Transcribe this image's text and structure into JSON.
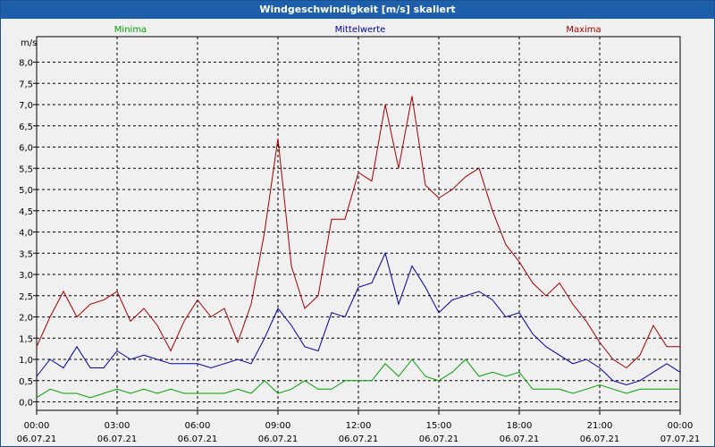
{
  "chart_data": {
    "type": "line",
    "title": "Windgeschwindigkeit [m/s] skaliert",
    "ylabel": "m/s",
    "ylim": [
      -0.2,
      8.6
    ],
    "yticks": [
      "0,0",
      "0,5",
      "1,0",
      "1,5",
      "2,0",
      "2,5",
      "3,0",
      "3,5",
      "4,0",
      "4,5",
      "5,0",
      "5,5",
      "6,0",
      "6,5",
      "7,0",
      "7,5",
      "8,0"
    ],
    "x_range_hours": [
      0,
      24
    ],
    "xticks": [
      {
        "time": "00:00",
        "date": "06.07.21"
      },
      {
        "time": "03:00",
        "date": "06.07.21"
      },
      {
        "time": "06:00",
        "date": "06.07.21"
      },
      {
        "time": "09:00",
        "date": "06.07.21"
      },
      {
        "time": "12:00",
        "date": "06.07.21"
      },
      {
        "time": "15:00",
        "date": "06.07.21"
      },
      {
        "time": "18:00",
        "date": "06.07.21"
      },
      {
        "time": "21:00",
        "date": "06.07.21"
      },
      {
        "time": "00:00",
        "date": "07.07.21"
      }
    ],
    "grid": true,
    "series": [
      {
        "name": "Minima",
        "color": "#00a000",
        "x": [
          0,
          0.5,
          1,
          1.5,
          2,
          2.5,
          3,
          3.5,
          4,
          4.5,
          5,
          5.5,
          6,
          6.5,
          7,
          7.5,
          8,
          8.5,
          9,
          9.5,
          10,
          10.5,
          11,
          11.5,
          12,
          12.5,
          13,
          13.5,
          14,
          14.5,
          15,
          15.5,
          16,
          16.5,
          17,
          17.5,
          18,
          18.5,
          19,
          19.5,
          20,
          20.5,
          21,
          21.5,
          22,
          22.5,
          23,
          23.5,
          24
        ],
        "values": [
          0.1,
          0.3,
          0.2,
          0.2,
          0.1,
          0.2,
          0.3,
          0.2,
          0.3,
          0.2,
          0.3,
          0.2,
          0.2,
          0.2,
          0.2,
          0.3,
          0.2,
          0.5,
          0.2,
          0.3,
          0.5,
          0.3,
          0.3,
          0.5,
          0.5,
          0.5,
          0.9,
          0.6,
          1.0,
          0.6,
          0.5,
          0.7,
          1.0,
          0.6,
          0.7,
          0.6,
          0.7,
          0.3,
          0.3,
          0.3,
          0.2,
          0.3,
          0.4,
          0.3,
          0.2,
          0.3,
          0.3,
          0.3,
          0.3
        ]
      },
      {
        "name": "Mittelwerte",
        "color": "#0000a0",
        "x": [
          0,
          0.5,
          1,
          1.5,
          2,
          2.5,
          3,
          3.5,
          4,
          4.5,
          5,
          5.5,
          6,
          6.5,
          7,
          7.5,
          8,
          8.5,
          9,
          9.5,
          10,
          10.5,
          11,
          11.5,
          12,
          12.5,
          13,
          13.5,
          14,
          14.5,
          15,
          15.5,
          16,
          16.5,
          17,
          17.5,
          18,
          18.5,
          19,
          19.5,
          20,
          20.5,
          21,
          21.5,
          22,
          22.5,
          23,
          23.5,
          24
        ],
        "values": [
          0.6,
          1.0,
          0.8,
          1.3,
          0.8,
          0.8,
          1.2,
          1.0,
          1.1,
          1.0,
          0.9,
          0.9,
          0.9,
          0.8,
          0.9,
          1.0,
          0.9,
          1.5,
          2.2,
          1.8,
          1.3,
          1.2,
          2.1,
          2.0,
          2.7,
          2.8,
          3.5,
          2.3,
          3.2,
          2.7,
          2.1,
          2.4,
          2.5,
          2.6,
          2.4,
          2.0,
          2.1,
          1.6,
          1.3,
          1.1,
          0.9,
          1.0,
          0.8,
          0.5,
          0.4,
          0.5,
          0.7,
          0.9,
          0.7
        ]
      },
      {
        "name": "Maxima",
        "color": "#a00000",
        "x": [
          0,
          0.5,
          1,
          1.5,
          2,
          2.5,
          3,
          3.5,
          4,
          4.5,
          5,
          5.5,
          6,
          6.5,
          7,
          7.5,
          8,
          8.5,
          9,
          9.5,
          10,
          10.5,
          11,
          11.5,
          12,
          12.5,
          13,
          13.5,
          14,
          14.5,
          15,
          15.5,
          16,
          16.5,
          17,
          17.5,
          18,
          18.5,
          19,
          19.5,
          20,
          20.5,
          21,
          21.5,
          22,
          22.5,
          23,
          23.5,
          24
        ],
        "values": [
          1.3,
          2.0,
          2.6,
          2.0,
          2.3,
          2.4,
          2.6,
          1.9,
          2.2,
          1.8,
          1.2,
          1.9,
          2.4,
          2.0,
          2.2,
          1.4,
          2.3,
          4.0,
          6.2,
          3.2,
          2.2,
          2.5,
          4.3,
          4.3,
          5.4,
          5.2,
          7.0,
          5.5,
          7.2,
          5.1,
          4.8,
          5.0,
          5.3,
          5.5,
          4.5,
          3.7,
          3.3,
          2.8,
          2.5,
          2.8,
          2.3,
          1.9,
          1.4,
          1.0,
          0.8,
          1.1,
          1.8,
          1.3,
          1.3
        ]
      }
    ]
  }
}
